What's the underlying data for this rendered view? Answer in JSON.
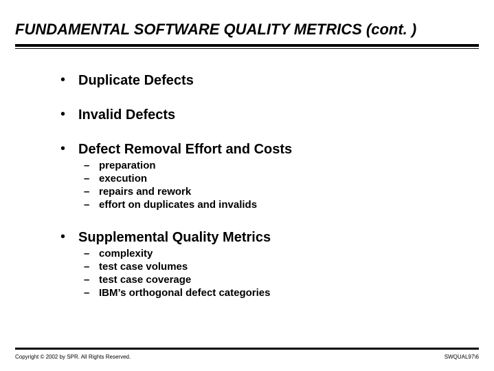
{
  "title": "FUNDAMENTAL SOFTWARE QUALITY METRICS (cont. )",
  "bullets": [
    {
      "text": "Duplicate Defects",
      "sub": []
    },
    {
      "text": "Invalid Defects",
      "sub": []
    },
    {
      "text": "Defect Removal Effort and Costs",
      "sub": [
        "preparation",
        "execution",
        "repairs and rework",
        "effort on duplicates and invalids"
      ]
    },
    {
      "text": "Supplemental Quality Metrics",
      "sub": [
        "complexity",
        "test case volumes",
        "test case coverage",
        "IBM’s orthogonal defect categories"
      ]
    }
  ],
  "copyright": "Copyright © 2002 by SPR.  All Rights Reserved.",
  "slidecode": "SWQUAL97\\6",
  "colors": {
    "fg": "#000000",
    "bg": "#ffffff"
  }
}
